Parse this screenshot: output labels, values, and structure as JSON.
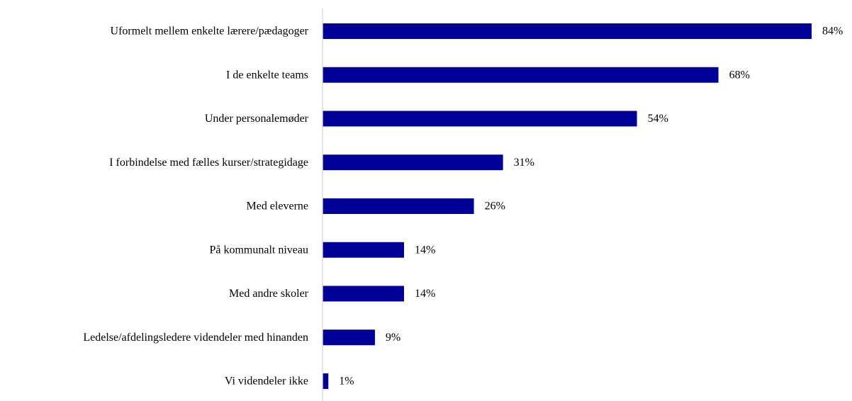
{
  "chart_data": {
    "type": "bar",
    "orientation": "horizontal",
    "categories": [
      "Uformelt mellem enkelte lærere/pædagoger",
      "I de enkelte teams",
      "Under personalemøder",
      "I forbindelse med fælles kurser/strategidage",
      "Med eleverne",
      "På kommunalt niveau",
      "Med andre skoler",
      "Ledelse/afdelingsledere videndeler med hinanden",
      "Vi videndeler ikke"
    ],
    "values": [
      84,
      68,
      54,
      31,
      26,
      14,
      14,
      9,
      1
    ],
    "value_labels": [
      "84%",
      "68%",
      "54%",
      "31%",
      "26%",
      "14%",
      "14%",
      "9%",
      "1%"
    ],
    "unit": "%",
    "xlim": [
      0,
      84
    ],
    "bar_color": "#000099",
    "axis_color": "#d9d9d9",
    "grid": false,
    "legend": "none"
  }
}
